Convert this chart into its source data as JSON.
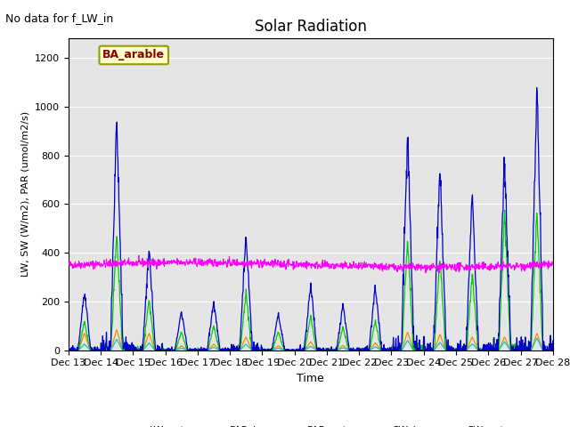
{
  "title": "Solar Radiation",
  "xlabel": "Time",
  "ylabel": "LW, SW (W/m2), PAR (umol/m2/s)",
  "annotation": "No data for f_LW_in",
  "legend_label": "BA_arable",
  "day_start": 13,
  "num_days": 15,
  "ylim": [
    0,
    1280
  ],
  "yticks": [
    0,
    200,
    400,
    600,
    800,
    1000,
    1200
  ],
  "background_color": "#e5e5e5",
  "colors": {
    "LW_out": "#ff00ff",
    "PAR_in": "#0000cc",
    "PAR_out": "#00cccc",
    "SW_in": "#00cc00",
    "SW_out": "#ff8800"
  },
  "peak_PAR_in": [
    240,
    950,
    420,
    160,
    200,
    480,
    150,
    270,
    190,
    260,
    890,
    750,
    650,
    780,
    1090
  ],
  "peak_SW_in": [
    120,
    490,
    210,
    75,
    100,
    240,
    75,
    140,
    95,
    120,
    460,
    380,
    320,
    580,
    590
  ],
  "peak_SW_out": [
    70,
    85,
    70,
    18,
    25,
    55,
    18,
    35,
    20,
    30,
    75,
    65,
    55,
    55,
    70
  ],
  "peak_PAR_out": [
    25,
    45,
    30,
    8,
    12,
    25,
    8,
    16,
    10,
    14,
    40,
    32,
    26,
    35,
    50
  ]
}
